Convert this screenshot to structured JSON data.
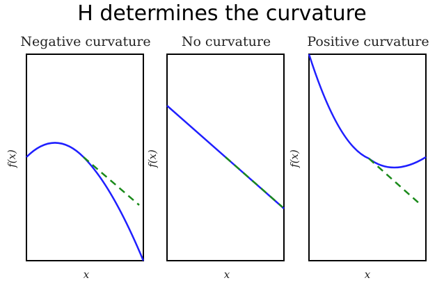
{
  "title": "H determines the curvature",
  "panels": [
    {
      "title": "Negative curvature",
      "xlabel": "x",
      "ylabel": "f(x)"
    },
    {
      "title": "No curvature",
      "xlabel": "x",
      "ylabel": "f(x)"
    },
    {
      "title": "Positive curvature",
      "xlabel": "x",
      "ylabel": "f(x)"
    }
  ],
  "colors": {
    "curve": "#1f1fff",
    "tangent": "#1a8a1a",
    "frame": "#000000"
  }
}
